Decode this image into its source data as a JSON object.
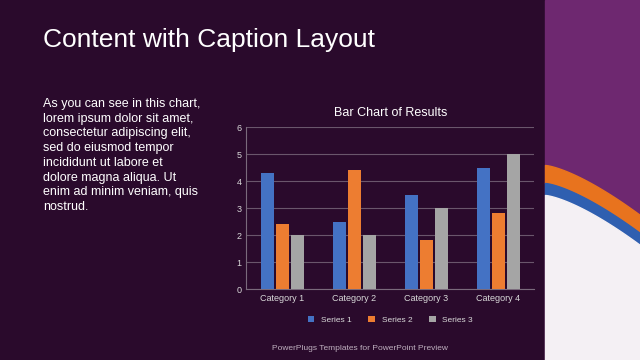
{
  "slide": {
    "title": "Content with Caption Layout",
    "caption_lines": [
      "As you can see in this chart,",
      "lorem ipsum dolor sit amet,",
      "consectetur adipiscing elit,",
      "sed do eiusmod tempor",
      "incididunt ut labore et",
      "dolore magna aliqua. Ut",
      "enim ad minim veniam, quis",
      "nostrud."
    ],
    "footer": "PowerPlugs Templates for PowerPoint Preview"
  },
  "chart_data": {
    "type": "bar",
    "title": "Bar Chart of Results",
    "categories": [
      "Category 1",
      "Category 2",
      "Category 3",
      "Category 4"
    ],
    "series": [
      {
        "name": "Series 1",
        "color": "#4472c4",
        "values": [
          4.3,
          2.5,
          3.5,
          4.5
        ]
      },
      {
        "name": "Series 2",
        "color": "#ed7d31",
        "values": [
          2.4,
          4.4,
          1.8,
          2.8
        ]
      },
      {
        "name": "Series 3",
        "color": "#a5a5a5",
        "values": [
          2,
          2,
          3,
          5
        ]
      }
    ],
    "ylim": [
      0,
      6
    ],
    "yticks": [
      0,
      1,
      2,
      3,
      4,
      5,
      6
    ],
    "grid": true,
    "legend": "bottom"
  }
}
